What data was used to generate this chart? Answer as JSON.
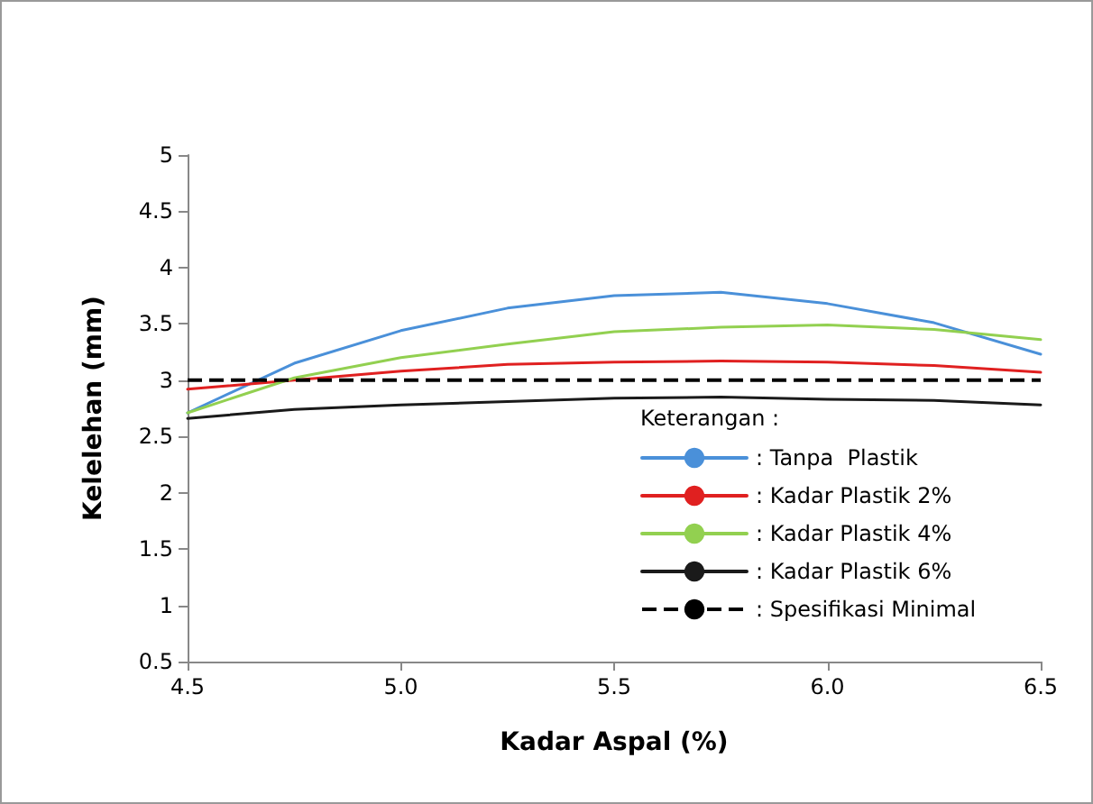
{
  "chart_data": {
    "type": "line",
    "xlabel": "Kadar Aspal (%)",
    "ylabel": "Kelelehan (mm)",
    "legend_title": "Keterangan :",
    "x": [
      4.5,
      4.75,
      5.0,
      5.25,
      5.5,
      5.75,
      6.0,
      6.25,
      6.5
    ],
    "series": [
      {
        "name": ": Tanpa  Plastik",
        "color": "#4a90d9",
        "values": [
          2.71,
          3.15,
          3.44,
          3.64,
          3.75,
          3.78,
          3.68,
          3.51,
          3.23
        ]
      },
      {
        "name": ": Kadar Plastik 2%",
        "color": "#e02020",
        "values": [
          2.92,
          3.0,
          3.08,
          3.14,
          3.16,
          3.17,
          3.16,
          3.13,
          3.07
        ]
      },
      {
        "name": ": Kadar Plastik 4%",
        "color": "#92d050",
        "values": [
          2.71,
          3.02,
          3.2,
          3.32,
          3.43,
          3.47,
          3.49,
          3.45,
          3.36
        ]
      },
      {
        "name": ": Kadar Plastik 6%",
        "color": "#1a1a1a",
        "values": [
          2.66,
          2.74,
          2.78,
          2.81,
          2.84,
          2.85,
          2.83,
          2.82,
          2.78
        ]
      }
    ],
    "ref_lines": [
      {
        "axis": "y",
        "value": 3,
        "label": ": Spesifikasi Minimal",
        "color": "#000000",
        "line_style": "dashed"
      }
    ],
    "xlim": [
      4.5,
      6.5
    ],
    "xticks": [
      {
        "value": 4.5,
        "label": "4.5"
      },
      {
        "value": 5.0,
        "label": "5.0"
      },
      {
        "value": 5.5,
        "label": "5.5"
      },
      {
        "value": 6.0,
        "label": "6.0"
      },
      {
        "value": 6.5,
        "label": "6.5"
      }
    ],
    "ylim": [
      0.5,
      5
    ],
    "yticks": [
      0.5,
      1,
      1.5,
      2,
      2.5,
      3,
      3.5,
      4,
      4.5,
      5
    ],
    "legend": "bottom right",
    "marker": "none",
    "line_style": "solid",
    "grid": false
  }
}
